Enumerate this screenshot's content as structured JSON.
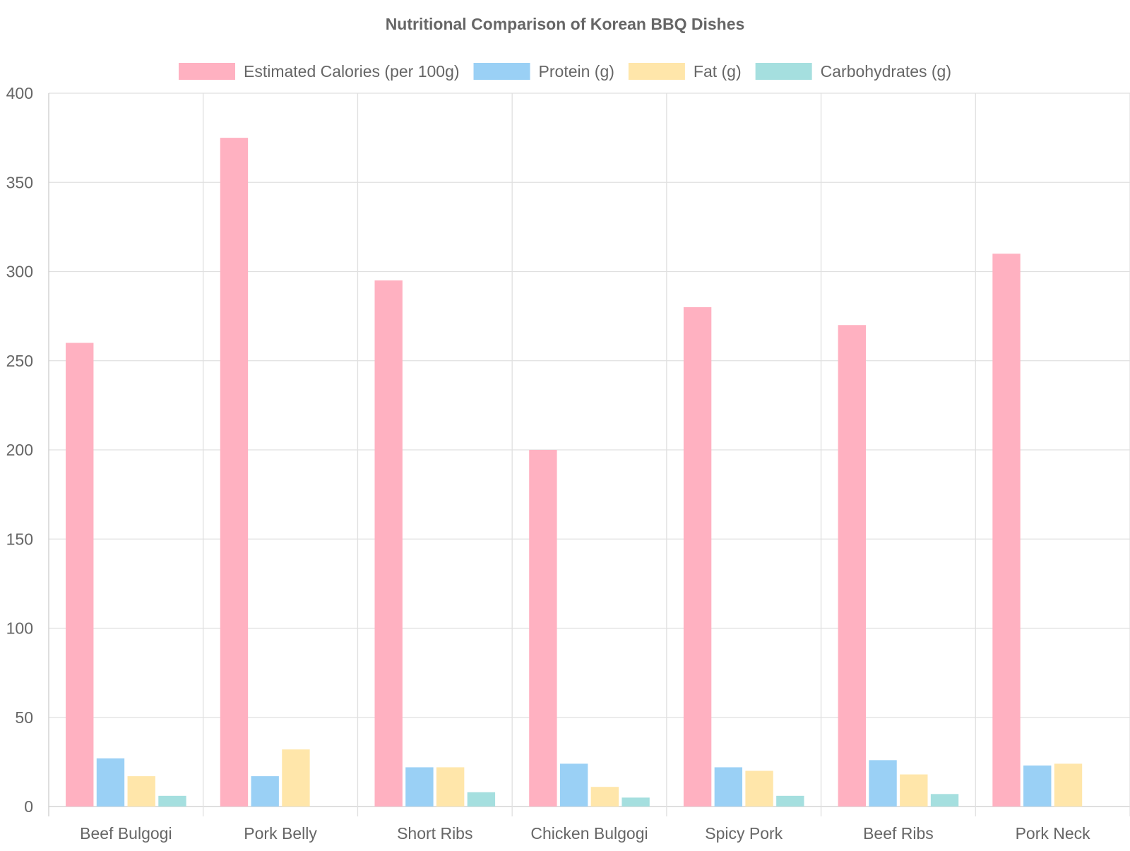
{
  "chart_data": {
    "type": "bar",
    "title": "Nutritional Comparison of Korean BBQ Dishes",
    "xlabel": "",
    "ylabel": "",
    "ylim": [
      0,
      400
    ],
    "yticks": [
      0,
      50,
      100,
      150,
      200,
      250,
      300,
      350,
      400
    ],
    "grid": true,
    "legend_position": "top",
    "categories": [
      "Beef Bulgogi",
      "Pork Belly",
      "Short Ribs",
      "Chicken Bulgogi",
      "Spicy Pork",
      "Beef Ribs",
      "Pork Neck"
    ],
    "series": [
      {
        "name": "Estimated Calories (per 100g)",
        "color": "#ffb1c1",
        "values": [
          260,
          375,
          295,
          200,
          280,
          270,
          310
        ]
      },
      {
        "name": "Protein (g)",
        "color": "#9ad0f5",
        "values": [
          27,
          17,
          22,
          24,
          22,
          26,
          23
        ]
      },
      {
        "name": "Fat (g)",
        "color": "#ffe6aa",
        "values": [
          17,
          32,
          22,
          11,
          20,
          18,
          24
        ]
      },
      {
        "name": "Carbohydrates (g)",
        "color": "#a5dfdf",
        "values": [
          6,
          0,
          8,
          5,
          6,
          7,
          0
        ]
      }
    ]
  },
  "colors": {
    "text": "#666666",
    "grid": "#e0e0e0",
    "axis": "#cccccc"
  }
}
